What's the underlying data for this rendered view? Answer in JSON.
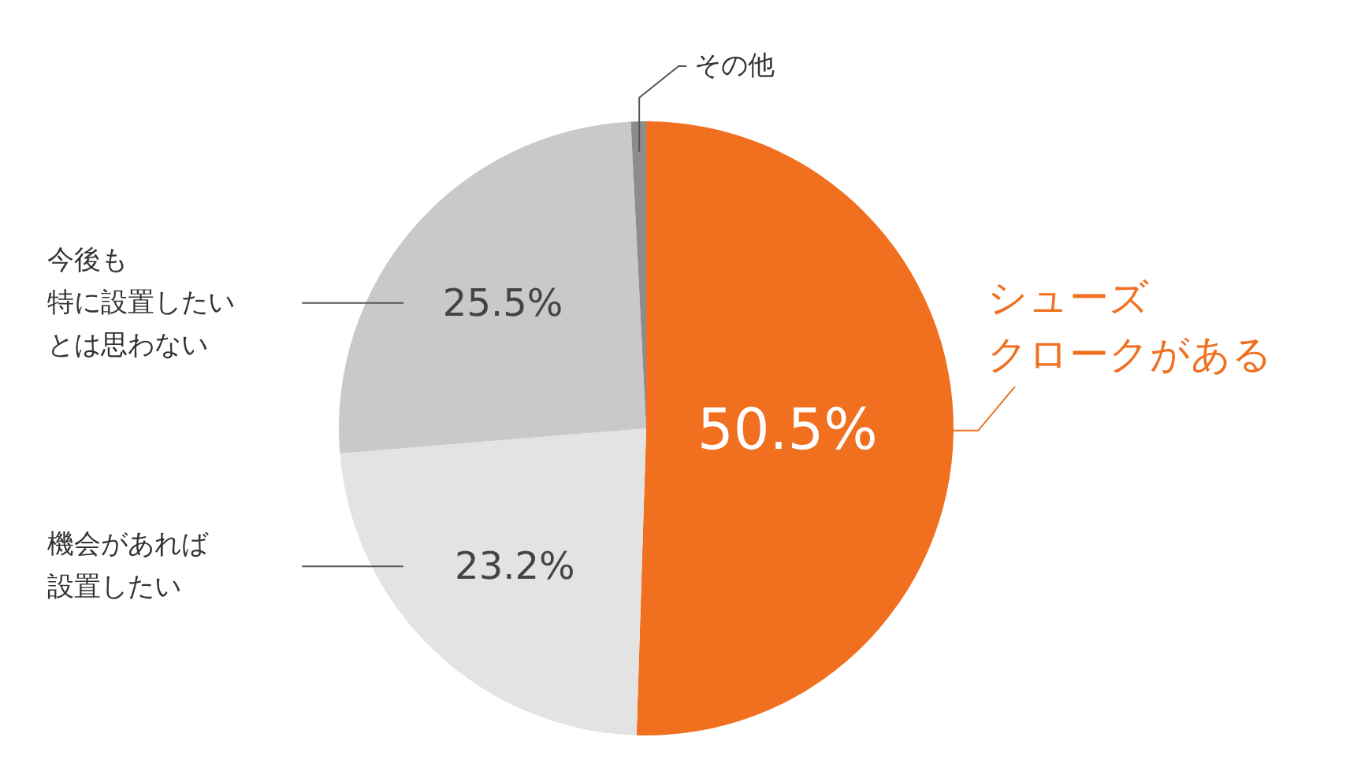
{
  "chart_data": {
    "type": "pie",
    "categories": [
      "シューズクロークがある",
      "機会があれば設置したい",
      "今後も特に設置したいとは思わない",
      "その他"
    ],
    "values": [
      50.5,
      23.2,
      25.5,
      0.8
    ],
    "colors": [
      "#f07020",
      "#e3e3e3",
      "#c8c9cb",
      "#8c8c8c"
    ],
    "value_labels": [
      "50.5%",
      "23.2%",
      "25.5%",
      null
    ]
  }
}
